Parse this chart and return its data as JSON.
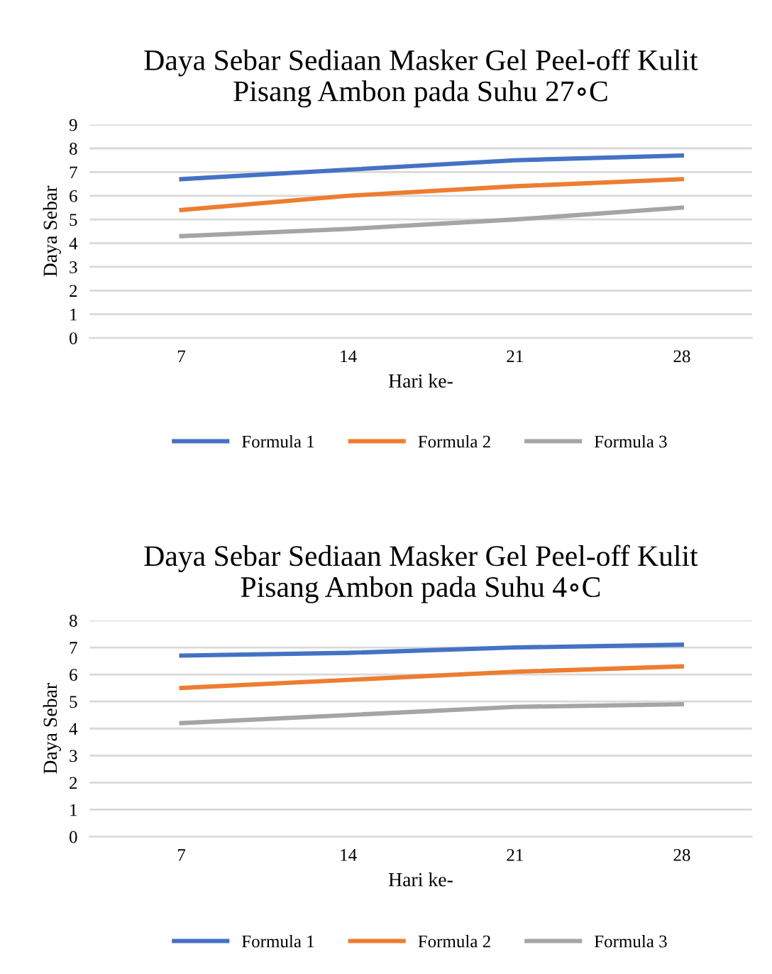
{
  "chart_data": [
    {
      "type": "line",
      "title": "Daya Sebar Sediaan Masker Gel Peel-off Kulit\nPisang Ambon pada Suhu 27∘C",
      "xlabel": "Hari ke-",
      "ylabel": "Daya Sebar",
      "categories": [
        "7",
        "14",
        "21",
        "28"
      ],
      "series": [
        {
          "name": "Formula 1",
          "color": "#4472c4",
          "values": [
            6.7,
            7.1,
            7.5,
            7.7
          ]
        },
        {
          "name": "Formula 2",
          "color": "#ed7d31",
          "values": [
            5.4,
            6.0,
            6.4,
            6.7
          ]
        },
        {
          "name": "Formula 3",
          "color": "#a5a5a5",
          "values": [
            4.3,
            4.6,
            5.0,
            5.5
          ]
        }
      ],
      "ylim": [
        0,
        9
      ],
      "yticks": [
        0,
        1,
        2,
        3,
        4,
        5,
        6,
        7,
        8,
        9
      ],
      "grid": "y",
      "legend": "bottom",
      "marker": "none",
      "line_style": "solid"
    },
    {
      "type": "line",
      "title": "Daya Sebar Sediaan Masker Gel Peel-off Kulit\nPisang Ambon pada Suhu 4∘C",
      "xlabel": "Hari ke-",
      "ylabel": "Daya Sebar",
      "categories": [
        "7",
        "14",
        "21",
        "28"
      ],
      "series": [
        {
          "name": "Formula 1",
          "color": "#4472c4",
          "values": [
            6.7,
            6.8,
            7.0,
            7.1
          ]
        },
        {
          "name": "Formula 2",
          "color": "#ed7d31",
          "values": [
            5.5,
            5.8,
            6.1,
            6.3
          ]
        },
        {
          "name": "Formula 3",
          "color": "#a5a5a5",
          "values": [
            4.2,
            4.5,
            4.8,
            4.9
          ]
        }
      ],
      "ylim": [
        0,
        8
      ],
      "yticks": [
        0,
        1,
        2,
        3,
        4,
        5,
        6,
        7,
        8
      ],
      "grid": "y",
      "legend": "bottom",
      "marker": "none",
      "line_style": "solid"
    }
  ]
}
